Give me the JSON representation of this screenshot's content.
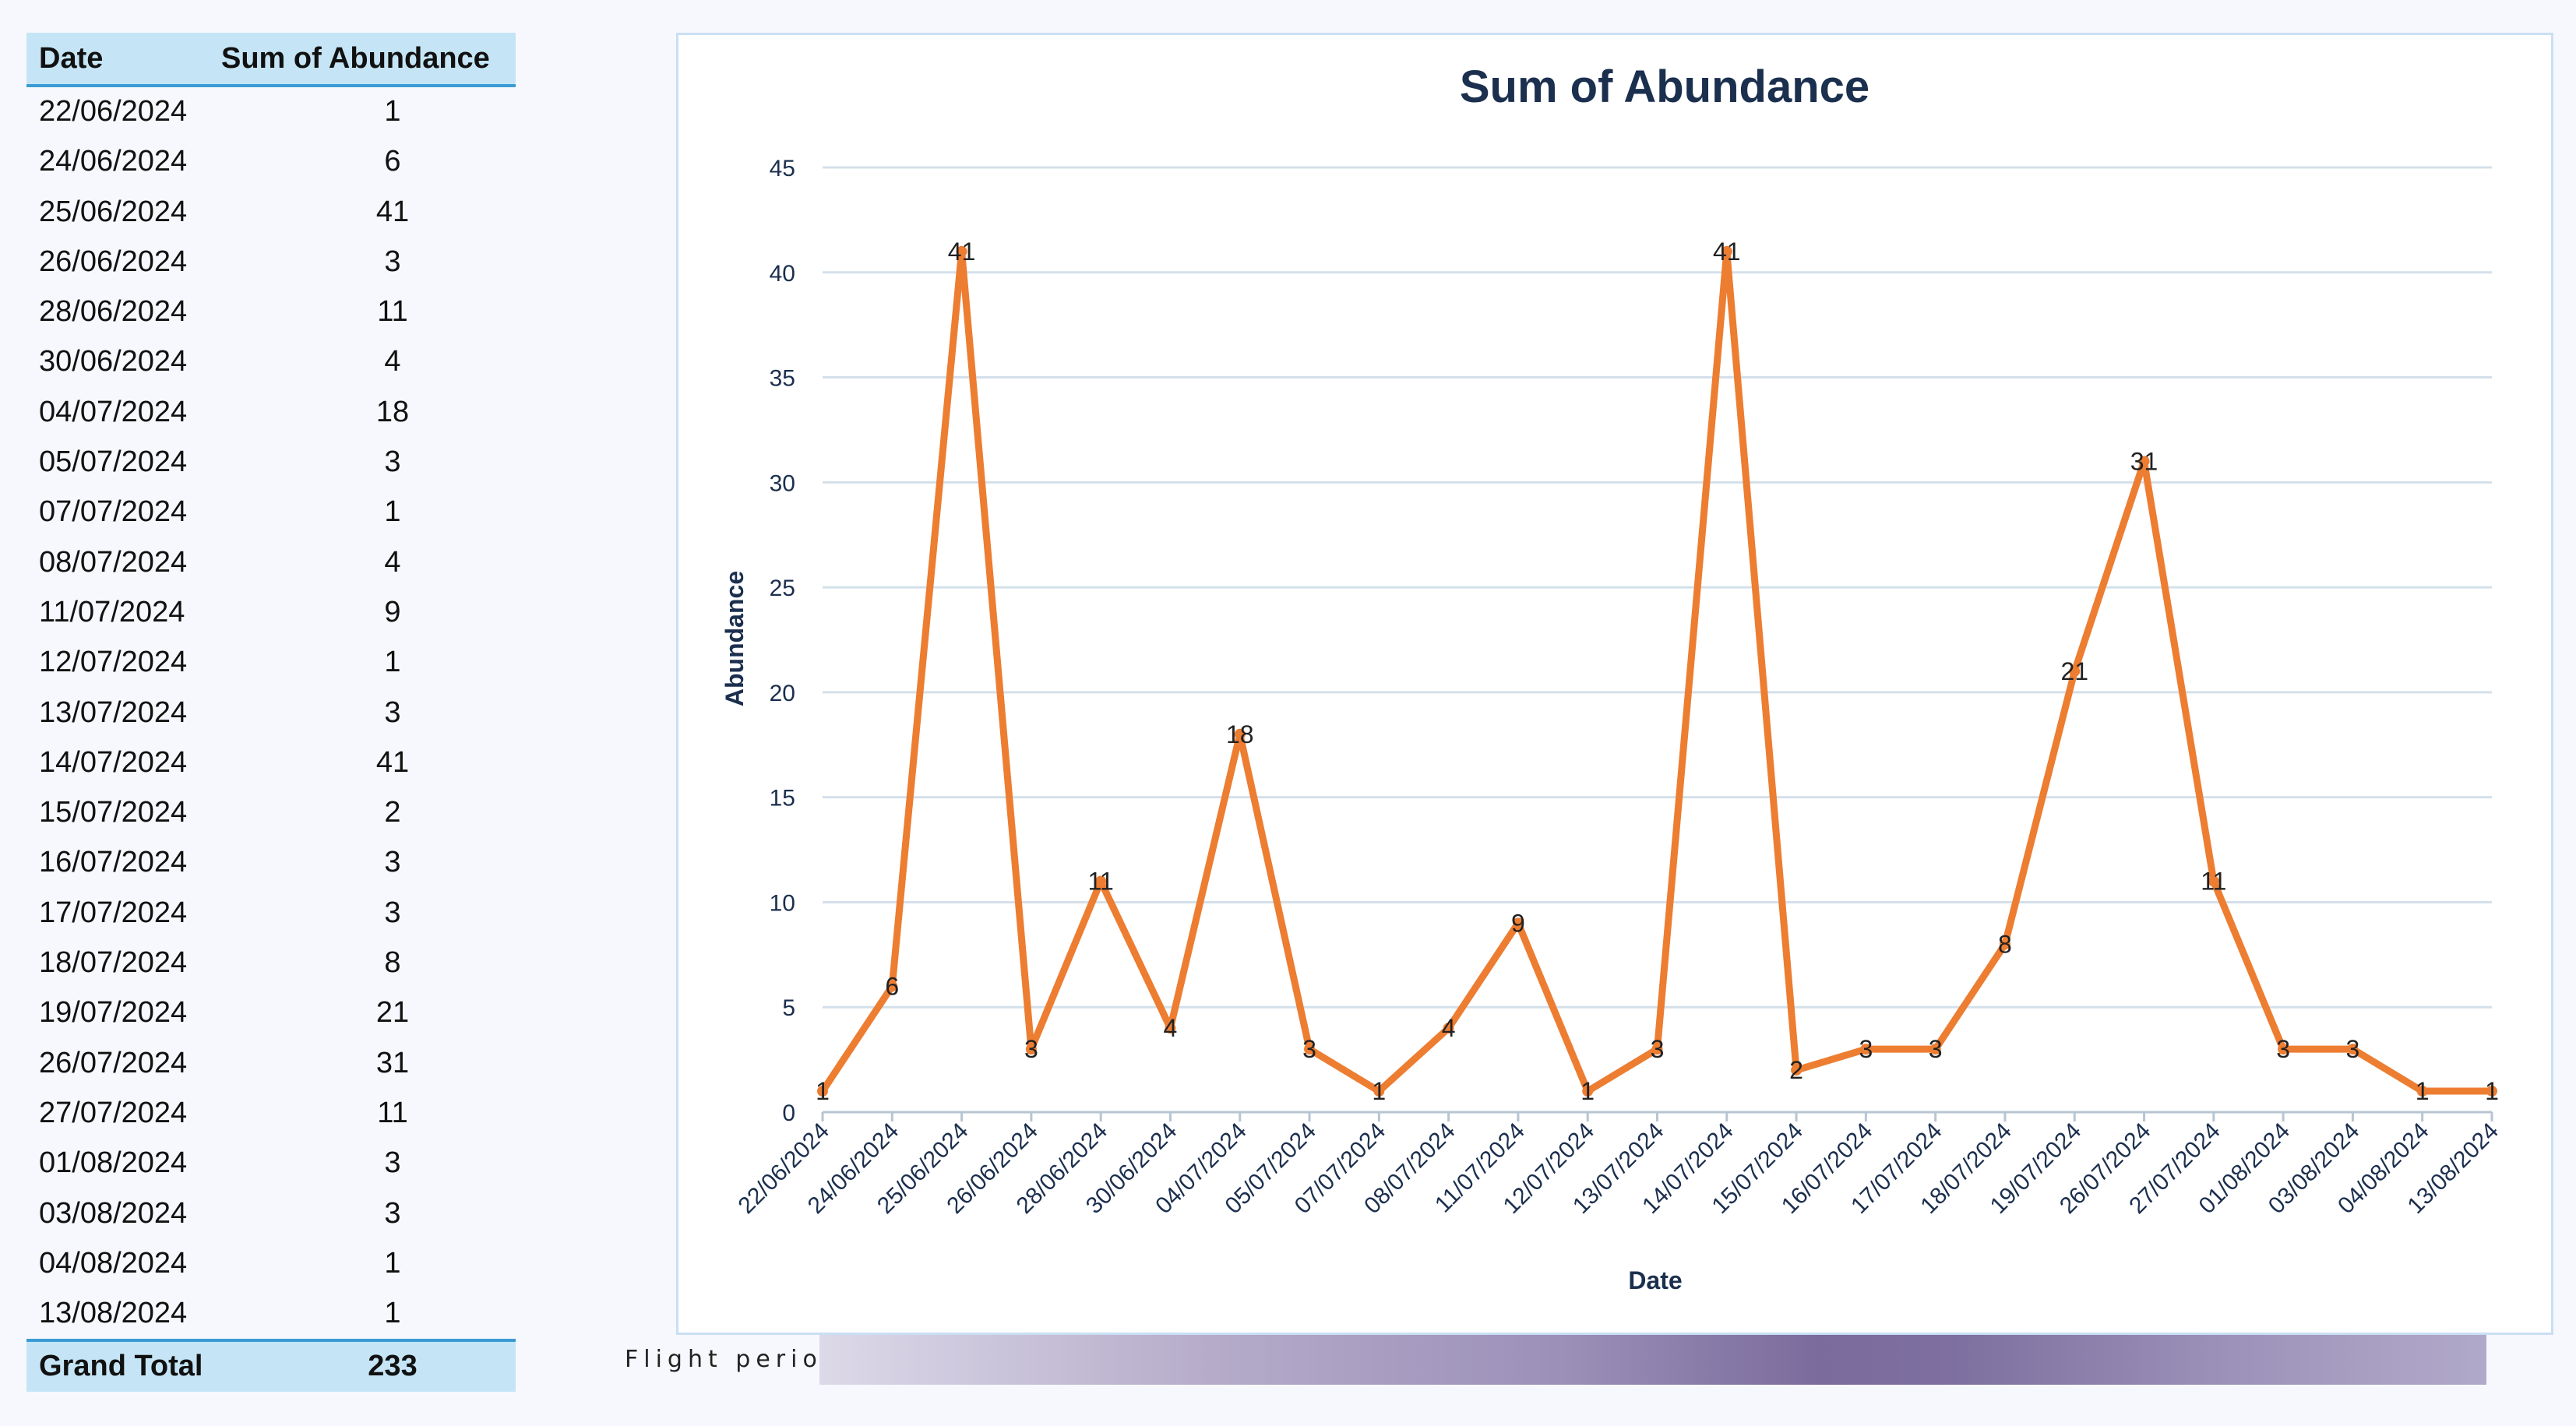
{
  "table": {
    "col_date": "Date",
    "col_sum": "Sum of Abundance",
    "rows": [
      {
        "date": "22/06/2024",
        "value": "1"
      },
      {
        "date": "24/06/2024",
        "value": "6"
      },
      {
        "date": "25/06/2024",
        "value": "41"
      },
      {
        "date": "26/06/2024",
        "value": "3"
      },
      {
        "date": "28/06/2024",
        "value": "11"
      },
      {
        "date": "30/06/2024",
        "value": "4"
      },
      {
        "date": "04/07/2024",
        "value": "18"
      },
      {
        "date": "05/07/2024",
        "value": "3"
      },
      {
        "date": "07/07/2024",
        "value": "1"
      },
      {
        "date": "08/07/2024",
        "value": "4"
      },
      {
        "date": "11/07/2024",
        "value": "9"
      },
      {
        "date": "12/07/2024",
        "value": "1"
      },
      {
        "date": "13/07/2024",
        "value": "3"
      },
      {
        "date": "14/07/2024",
        "value": "41"
      },
      {
        "date": "15/07/2024",
        "value": "2"
      },
      {
        "date": "16/07/2024",
        "value": "3"
      },
      {
        "date": "17/07/2024",
        "value": "3"
      },
      {
        "date": "18/07/2024",
        "value": "8"
      },
      {
        "date": "19/07/2024",
        "value": "21"
      },
      {
        "date": "26/07/2024",
        "value": "31"
      },
      {
        "date": "27/07/2024",
        "value": "11"
      },
      {
        "date": "01/08/2024",
        "value": "3"
      },
      {
        "date": "03/08/2024",
        "value": "3"
      },
      {
        "date": "04/08/2024",
        "value": "1"
      },
      {
        "date": "13/08/2024",
        "value": "1"
      }
    ],
    "total_label": "Grand Total",
    "total_value": "233"
  },
  "flight_period_label": "Flight period",
  "chart_data": {
    "type": "line",
    "title": "Sum of Abundance",
    "xlabel": "Date",
    "ylabel": "Abundance",
    "ylim": [
      0,
      45
    ],
    "yticks": [
      0,
      5,
      10,
      15,
      20,
      25,
      30,
      35,
      40,
      45
    ],
    "grid": true,
    "data_labels": true,
    "line_color": "#ed7d31",
    "categories": [
      "22/06/2024",
      "24/06/2024",
      "25/06/2024",
      "26/06/2024",
      "28/06/2024",
      "30/06/2024",
      "04/07/2024",
      "05/07/2024",
      "07/07/2024",
      "08/07/2024",
      "11/07/2024",
      "12/07/2024",
      "13/07/2024",
      "14/07/2024",
      "15/07/2024",
      "16/07/2024",
      "17/07/2024",
      "18/07/2024",
      "19/07/2024",
      "26/07/2024",
      "27/07/2024",
      "01/08/2024",
      "03/08/2024",
      "04/08/2024",
      "13/08/2024"
    ],
    "values": [
      1,
      6,
      41,
      3,
      11,
      4,
      18,
      3,
      1,
      4,
      9,
      1,
      3,
      41,
      2,
      3,
      3,
      8,
      21,
      31,
      11,
      3,
      3,
      1,
      1
    ]
  }
}
